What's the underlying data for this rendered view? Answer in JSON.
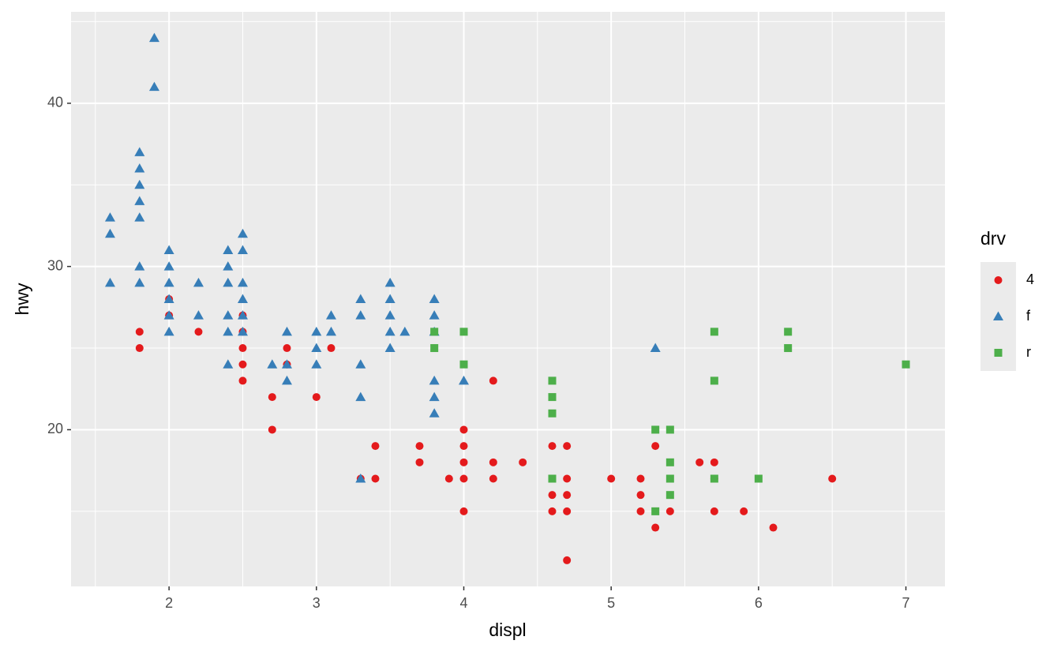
{
  "chart_data": {
    "type": "scatter",
    "x_label": "displ",
    "y_label": "hwy",
    "legend_title": "drv",
    "xlim": [
      1.335,
      7.265
    ],
    "ylim": [
      10.4,
      45.6
    ],
    "xticks": [
      2,
      3,
      4,
      5,
      6,
      7
    ],
    "yticks": [
      20,
      30,
      40
    ],
    "grid": true,
    "legend_position": "right",
    "series": [
      {
        "name": "4",
        "color": "#E41A1C",
        "shape": "circle",
        "x": [
          1.8,
          1.8,
          2.0,
          2.0,
          2.2,
          2.5,
          2.5,
          2.5,
          2.5,
          2.5,
          2.7,
          2.7,
          2.8,
          2.8,
          3.0,
          3.1,
          3.3,
          3.4,
          3.4,
          3.7,
          3.7,
          3.9,
          4.0,
          4.0,
          4.0,
          4.0,
          4.0,
          4.2,
          4.2,
          4.2,
          4.4,
          4.6,
          4.6,
          4.6,
          4.6,
          4.7,
          4.7,
          4.7,
          4.7,
          4.7,
          5.0,
          5.2,
          5.2,
          5.2,
          5.3,
          5.3,
          5.4,
          5.6,
          5.7,
          5.7,
          5.7,
          5.9,
          6.1,
          6.5
        ],
        "values": [
          26,
          25,
          28,
          27,
          26,
          27,
          26,
          25,
          24,
          23,
          22,
          20,
          25,
          24,
          22,
          25,
          17,
          19,
          17,
          19,
          18,
          17,
          20,
          19,
          18,
          17,
          15,
          23,
          18,
          17,
          18,
          19,
          17,
          16,
          15,
          19,
          17,
          16,
          15,
          12,
          17,
          17,
          16,
          15,
          19,
          14,
          15,
          18,
          18,
          17,
          15,
          15,
          14,
          17
        ]
      },
      {
        "name": "f",
        "color": "#377EB8",
        "shape": "triangle",
        "x": [
          1.6,
          1.6,
          1.6,
          1.8,
          1.8,
          1.8,
          1.8,
          1.8,
          1.8,
          1.8,
          1.9,
          1.9,
          2.0,
          2.0,
          2.0,
          2.0,
          2.0,
          2.0,
          2.2,
          2.2,
          2.4,
          2.4,
          2.4,
          2.4,
          2.4,
          2.4,
          2.5,
          2.5,
          2.5,
          2.5,
          2.5,
          2.5,
          2.7,
          2.8,
          2.8,
          2.8,
          3.0,
          3.0,
          3.0,
          3.1,
          3.1,
          3.3,
          3.3,
          3.3,
          3.3,
          3.3,
          3.5,
          3.5,
          3.5,
          3.5,
          3.5,
          3.6,
          3.8,
          3.8,
          3.8,
          3.8,
          3.8,
          3.8,
          4.0,
          5.3
        ],
        "values": [
          33,
          32,
          29,
          37,
          36,
          35,
          34,
          33,
          30,
          29,
          44,
          41,
          31,
          30,
          29,
          28,
          27,
          26,
          29,
          27,
          31,
          30,
          29,
          27,
          26,
          24,
          32,
          31,
          29,
          28,
          27,
          26,
          24,
          26,
          24,
          23,
          26,
          25,
          24,
          27,
          26,
          28,
          27,
          24,
          22,
          17,
          29,
          28,
          27,
          26,
          25,
          26,
          28,
          27,
          26,
          23,
          22,
          21,
          23,
          25
        ]
      },
      {
        "name": "r",
        "color": "#4DAF4A",
        "shape": "square",
        "x": [
          3.8,
          3.8,
          4.0,
          4.0,
          4.6,
          4.6,
          4.6,
          4.6,
          5.3,
          5.3,
          5.4,
          5.4,
          5.4,
          5.4,
          5.7,
          5.7,
          5.7,
          6.0,
          6.2,
          6.2,
          7.0
        ],
        "values": [
          26,
          25,
          26,
          24,
          23,
          22,
          21,
          17,
          20,
          15,
          20,
          18,
          17,
          16,
          26,
          23,
          17,
          17,
          26,
          25,
          24
        ]
      }
    ]
  }
}
